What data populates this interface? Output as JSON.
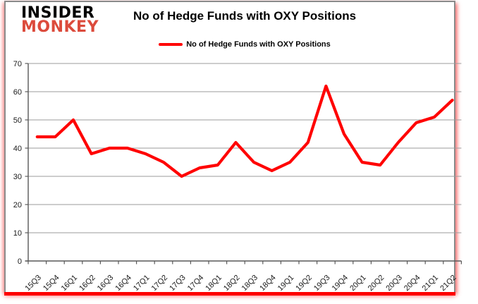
{
  "header": {
    "logo": {
      "line1": "INSIDER",
      "line2": "MONKEY"
    },
    "title": "No of Hedge Funds with OXY Positions",
    "legend": {
      "label": "No of Hedge Funds with OXY Positions",
      "color": "#ff0000"
    }
  },
  "branding": {
    "logo_primary_color": "#000000",
    "logo_secondary_color": "#dc4b3c",
    "accent_bar_color": "#fe0000"
  },
  "chart_data": {
    "type": "line",
    "title": "No of Hedge Funds with OXY Positions",
    "series_name": "No of Hedge Funds with OXY Positions",
    "categories": [
      "15Q3",
      "15Q4",
      "16Q1",
      "16Q2",
      "16Q3",
      "16Q4",
      "17Q1",
      "17Q2",
      "17Q3",
      "17Q4",
      "18Q1",
      "18Q2",
      "18Q3",
      "18Q4",
      "19Q1",
      "19Q2",
      "19Q3",
      "19Q4",
      "20Q1",
      "20Q2",
      "20Q3",
      "20Q4",
      "21Q1",
      "21Q2"
    ],
    "values": [
      44,
      44,
      50,
      38,
      40,
      40,
      38,
      35,
      30,
      33,
      34,
      42,
      35,
      32,
      35,
      42,
      62,
      45,
      35,
      34,
      42,
      49,
      51,
      57
    ],
    "xlabel": "",
    "ylabel": "",
    "ylim": [
      0,
      70
    ],
    "ytick_step": 10,
    "grid": true,
    "legend_position": "top",
    "line_color": "#ff0000",
    "axis_color": "#595959",
    "grid_color": "#9b9b9b",
    "label_color": "#1a1a1a"
  }
}
